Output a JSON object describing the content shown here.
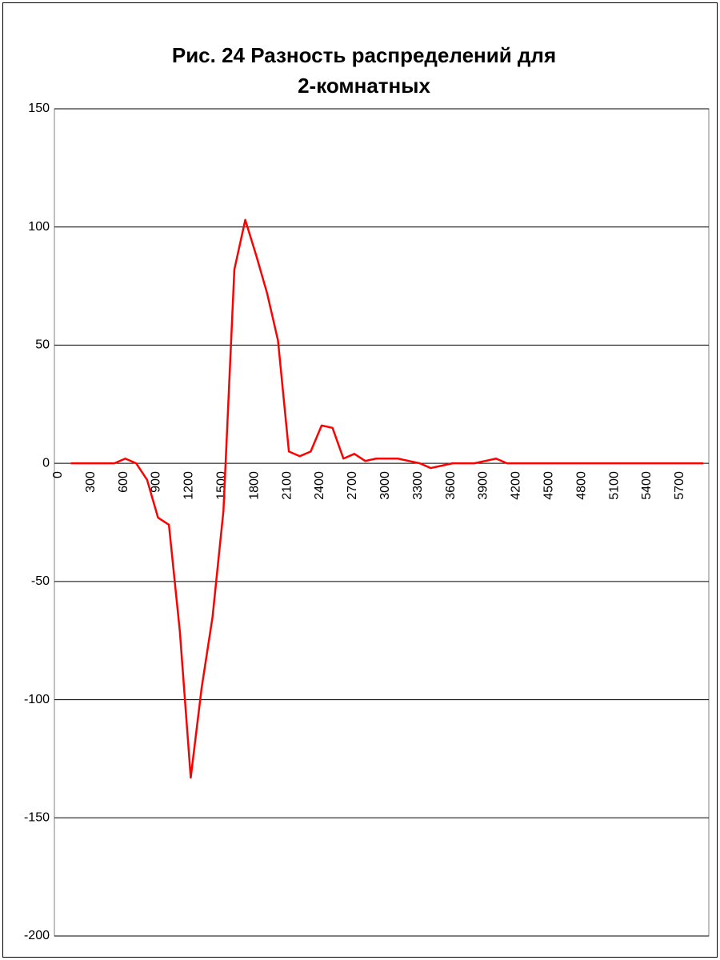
{
  "chart_data": {
    "type": "line",
    "title": [
      "Рис. 24 Разность распределений для",
      "2-комнатных"
    ],
    "categories": [
      "0",
      null,
      null,
      "300",
      null,
      null,
      "600",
      null,
      null,
      "900",
      null,
      null,
      "1200",
      null,
      null,
      "1500",
      null,
      null,
      "1800",
      null,
      null,
      "2100",
      null,
      null,
      "2400",
      null,
      null,
      "2700",
      null,
      null,
      "3000",
      null,
      null,
      "3300",
      null,
      null,
      "3600",
      null,
      null,
      "3900",
      null,
      null,
      "4200",
      null,
      null,
      "4500",
      null,
      null,
      "4800",
      null,
      null,
      "5100",
      null,
      null,
      "5400",
      null,
      null,
      "5700",
      null,
      null
    ],
    "series": [
      {
        "color": "#ff0000",
        "values": [
          null,
          0,
          0,
          0,
          0,
          0,
          2,
          0,
          -7,
          -23,
          -26,
          -71,
          -133,
          -95,
          -65,
          -20,
          82,
          103,
          88,
          72,
          52,
          5,
          3,
          5,
          16,
          15,
          2,
          4,
          1,
          2,
          2,
          2,
          1,
          0,
          -2,
          -1,
          0,
          0,
          0,
          1,
          2,
          0,
          0,
          0,
          0,
          0,
          0,
          0,
          0,
          0,
          0,
          0,
          0,
          0,
          0,
          0,
          0,
          0,
          0,
          0
        ]
      }
    ],
    "ylim": [
      -200,
      150
    ],
    "yticks": [
      -200,
      -150,
      -100,
      -50,
      0,
      50,
      100,
      150
    ],
    "grid": true
  }
}
